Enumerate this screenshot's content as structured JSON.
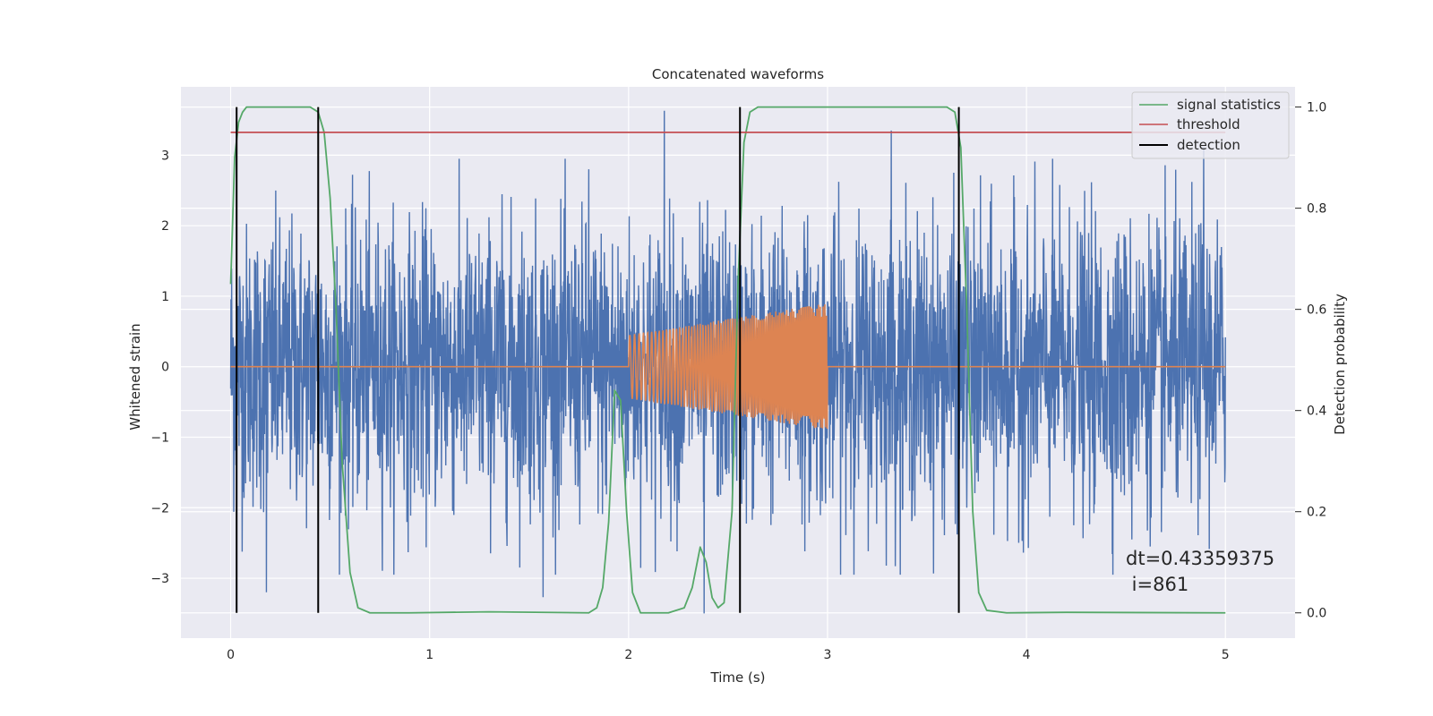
{
  "chart_data": {
    "type": "line",
    "title": "Concatenated waveforms",
    "xlabel": "Time (s)",
    "ylabel_left": "Whitened strain",
    "ylabel_right": "Detection probability",
    "xlim": [
      -0.25,
      5.35
    ],
    "ylim_left": [
      -3.85,
      3.97
    ],
    "ylim_right": [
      -0.05,
      1.04
    ],
    "x_ticks": [
      0,
      1,
      2,
      3,
      4,
      5
    ],
    "y_ticks_left": [
      -3,
      -2,
      -1,
      0,
      1,
      2,
      3
    ],
    "y_ticks_right": [
      0.0,
      0.2,
      0.4,
      0.6,
      0.8,
      1.0
    ],
    "grid": true,
    "legend_position": "top-right",
    "annotation": {
      "line1": "dt=0.43359375",
      "line2": " i=861"
    },
    "series": [
      {
        "name": "",
        "axis": "left",
        "color": "#4c72b0",
        "kind": "noise",
        "x_range": [
          0,
          5
        ],
        "typical_amplitude": 1.0,
        "peaks": [
          {
            "x": 2.18,
            "y": 3.63
          },
          {
            "x": 3.32,
            "y": 3.35
          },
          {
            "x": 4.89,
            "y": 3.12
          },
          {
            "x": 0.18,
            "y": 2.62
          },
          {
            "x": 1.8,
            "y": 2.8
          },
          {
            "x": 2.38,
            "y": -3.5
          },
          {
            "x": 1.57,
            "y": -3.27
          },
          {
            "x": 0.18,
            "y": -3.2
          },
          {
            "x": 4.53,
            "y": -2.45
          }
        ]
      },
      {
        "name": "",
        "axis": "left",
        "color": "#dd8452",
        "kind": "chirp",
        "x_range": [
          0,
          5
        ],
        "chirp_start": 2.0,
        "chirp_end": 3.0,
        "amplitude_start": 0.45,
        "amplitude_end": 0.9
      },
      {
        "name": "signal statistics",
        "axis": "right",
        "color": "#55a868",
        "x": [
          0.0,
          0.02,
          0.04,
          0.06,
          0.08,
          0.1,
          0.15,
          0.3,
          0.4,
          0.44,
          0.47,
          0.5,
          0.53,
          0.56,
          0.6,
          0.64,
          0.7,
          0.9,
          1.3,
          1.8,
          1.84,
          1.87,
          1.9,
          1.93,
          1.96,
          1.99,
          2.02,
          2.06,
          2.1,
          2.2,
          2.28,
          2.32,
          2.36,
          2.39,
          2.42,
          2.45,
          2.48,
          2.52,
          2.55,
          2.58,
          2.61,
          2.65,
          2.7,
          2.8,
          3.5,
          3.6,
          3.64,
          3.67,
          3.7,
          3.73,
          3.76,
          3.8,
          3.9,
          4.2,
          5.0
        ],
        "y": [
          0.65,
          0.9,
          0.97,
          0.99,
          1.0,
          1.0,
          1.0,
          1.0,
          1.0,
          0.99,
          0.95,
          0.82,
          0.6,
          0.3,
          0.08,
          0.01,
          0.0,
          0.0,
          0.002,
          0.0,
          0.01,
          0.05,
          0.18,
          0.44,
          0.42,
          0.2,
          0.04,
          0.0,
          0.0,
          0.0,
          0.01,
          0.05,
          0.13,
          0.1,
          0.03,
          0.01,
          0.02,
          0.2,
          0.65,
          0.93,
          0.99,
          1.0,
          1.0,
          1.0,
          1.0,
          1.0,
          0.99,
          0.92,
          0.6,
          0.2,
          0.04,
          0.005,
          0.0,
          0.001,
          0.0
        ]
      },
      {
        "name": "threshold",
        "axis": "right",
        "color": "#c44e52",
        "x": [
          0,
          5
        ],
        "y": [
          0.95,
          0.95
        ]
      },
      {
        "name": "detection",
        "axis": "right",
        "color": "#000000",
        "vlines": [
          0.03,
          0.44,
          2.56,
          3.66
        ],
        "y_range": [
          0,
          1
        ]
      }
    ]
  }
}
